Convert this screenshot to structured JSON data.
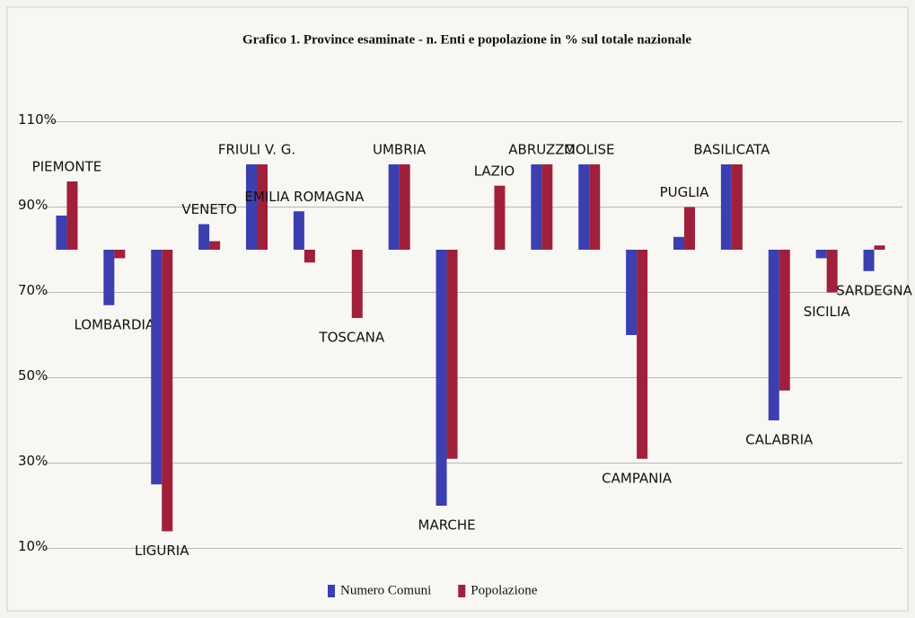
{
  "chart_data": {
    "type": "bar",
    "title": "Grafico 1. Province esaminate - n. Enti e popolazione in % sul totale nazionale",
    "categories": [
      "PIEMONTE",
      "LOMBARDIA",
      "LIGURIA",
      "VENETO",
      "FRIULI V. G.",
      "EMILIA  ROMAGNA",
      "TOSCANA",
      "UMBRIA",
      "MARCHE",
      "LAZIO",
      "ABRUZZO",
      "MOLISE",
      "CAMPANIA",
      "PUGLIA",
      "BASILICATA",
      "CALABRIA",
      "SICILIA",
      "SARDEGNA"
    ],
    "series": [
      {
        "name": "Numero Comuni",
        "color": "#3b3fb0",
        "values": [
          88,
          67,
          25,
          86,
          100,
          89,
          null,
          100,
          20,
          null,
          100,
          100,
          60,
          83,
          100,
          40,
          78,
          75
        ]
      },
      {
        "name": "Popolazione",
        "color": "#a0203c",
        "values": [
          96,
          78,
          14,
          82,
          100,
          77,
          64,
          100,
          31,
          95,
          100,
          100,
          31,
          90,
          100,
          47,
          70,
          81
        ]
      }
    ],
    "baseline": 80,
    "ylim": [
      4,
      118
    ],
    "yticks": [
      {
        "value": 10,
        "label": "10%"
      },
      {
        "value": 30,
        "label": "30%"
      },
      {
        "value": 50,
        "label": "50%"
      },
      {
        "value": 70,
        "label": "70%"
      },
      {
        "value": 90,
        "label": "90%"
      },
      {
        "value": 110,
        "label": "110%"
      }
    ],
    "grid": true,
    "legend": "bottom"
  }
}
